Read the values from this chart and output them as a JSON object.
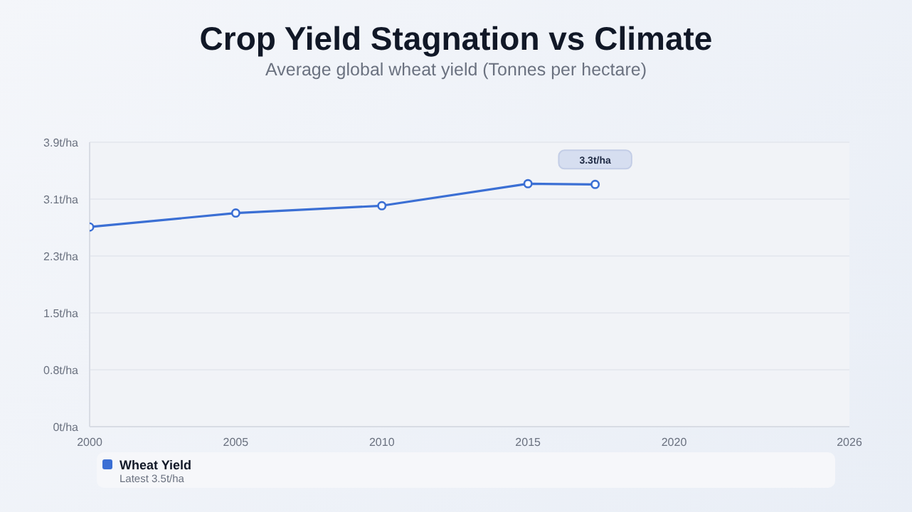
{
  "chart_data": {
    "type": "line",
    "title": "Crop Yield Stagnation vs Climate",
    "subtitle": "Average global wheat yield (Tonnes per hectare)",
    "x": [
      2000,
      2005,
      2010,
      2015,
      2017.3
    ],
    "series": [
      {
        "name": "Wheat Yield",
        "color": "#3b6fd4",
        "values": [
          2.72,
          2.91,
          3.01,
          3.31,
          3.3
        ],
        "value_labels": [
          null,
          null,
          null,
          null,
          "3.3t/ha"
        ]
      }
    ],
    "xlim": [
      2000,
      2026
    ],
    "xticks": [
      2000,
      2005,
      2010,
      2015,
      2020,
      2026
    ],
    "ylim": [
      0,
      3.875
    ],
    "yticks": [
      {
        "value": 0,
        "label": "0t/ha"
      },
      {
        "value": 0.775,
        "label": "0.8t/ha"
      },
      {
        "value": 1.55,
        "label": "1.5t/ha"
      },
      {
        "value": 2.325,
        "label": "2.3t/ha"
      },
      {
        "value": 3.1,
        "label": "3.1t/ha"
      },
      {
        "value": 3.875,
        "label": "3.9t/ha"
      }
    ],
    "grid": "y",
    "legend": "bottom",
    "marker": "circle",
    "line_style": "solid",
    "annotations": [
      "Latest 3.5t/ha"
    ]
  }
}
